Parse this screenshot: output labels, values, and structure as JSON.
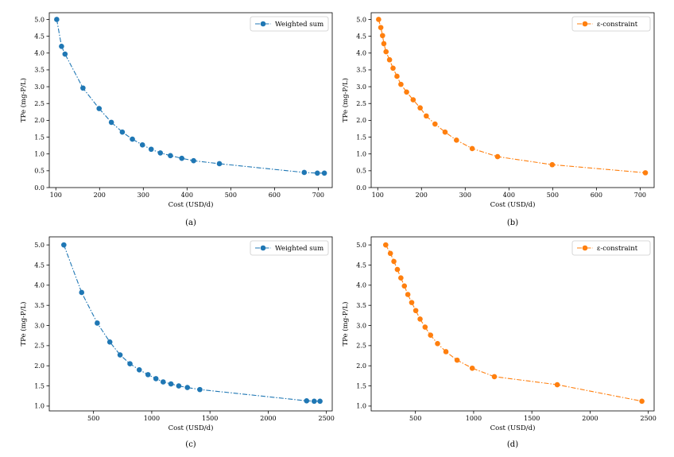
{
  "chart_data": [
    {
      "type": "line",
      "caption": "(a)",
      "xlabel": "Cost (USD/d)",
      "ylabel": "TPe (mg-P/L)",
      "xlim": [
        85,
        732
      ],
      "ylim": [
        0.0,
        5.2
      ],
      "xticks": [
        100,
        200,
        300,
        400,
        500,
        600,
        700
      ],
      "yticks": [
        0.0,
        0.5,
        1.0,
        1.5,
        2.0,
        2.5,
        3.0,
        3.5,
        4.0,
        4.5,
        5.0
      ],
      "ytick_labels": [
        "0.0",
        "0.5",
        "1.0",
        "1.5",
        "2.0",
        "2.5",
        "3.0",
        "3.5",
        "4.0",
        "4.5",
        "5.0"
      ],
      "legend_position": "top-right",
      "series": [
        {
          "name": "Weighted sum",
          "color": "#1f77b4",
          "x": [
            102,
            113,
            121,
            162,
            199,
            227,
            252,
            275,
            298,
            318,
            339,
            362,
            388,
            415,
            474,
            668,
            698,
            714
          ],
          "y": [
            5.0,
            4.2,
            3.97,
            2.96,
            2.35,
            1.94,
            1.65,
            1.44,
            1.27,
            1.14,
            1.03,
            0.95,
            0.87,
            0.8,
            0.71,
            0.45,
            0.43,
            0.43
          ]
        }
      ]
    },
    {
      "type": "line",
      "caption": "(b)",
      "xlabel": "Cost (USD/d)",
      "ylabel": "TPe (mg-P/L)",
      "xlim": [
        85,
        732
      ],
      "ylim": [
        0.0,
        5.2
      ],
      "xticks": [
        100,
        200,
        300,
        400,
        500,
        600,
        700
      ],
      "yticks": [
        0.0,
        0.5,
        1.0,
        1.5,
        2.0,
        2.5,
        3.0,
        3.5,
        4.0,
        4.5,
        5.0
      ],
      "ytick_labels": [
        "0.0",
        "0.5",
        "1.0",
        "1.5",
        "2.0",
        "2.5",
        "3.0",
        "3.5",
        "4.0",
        "4.5",
        "5.0"
      ],
      "legend_position": "top-right",
      "series": [
        {
          "name": "ε-constraint",
          "color": "#ff7f0e",
          "x": [
            102,
            107,
            111,
            114,
            119,
            127,
            135,
            144,
            153,
            166,
            181,
            197,
            211,
            231,
            254,
            280,
            316,
            374,
            499,
            712
          ],
          "y": [
            5.0,
            4.76,
            4.52,
            4.28,
            4.04,
            3.8,
            3.55,
            3.31,
            3.07,
            2.84,
            2.61,
            2.37,
            2.13,
            1.89,
            1.65,
            1.41,
            1.16,
            0.92,
            0.68,
            0.44
          ]
        }
      ]
    },
    {
      "type": "line",
      "caption": "(c)",
      "xlabel": "Cost (USD/d)",
      "ylabel": "TPe (mg-P/L)",
      "xlim": [
        120,
        2550
      ],
      "ylim": [
        0.88,
        5.2
      ],
      "xticks": [
        500,
        1000,
        1500,
        2000,
        2500
      ],
      "yticks": [
        1.0,
        1.5,
        2.0,
        2.5,
        3.0,
        3.5,
        4.0,
        4.5,
        5.0
      ],
      "ytick_labels": [
        "1.0",
        "1.5",
        "2.0",
        "2.5",
        "3.0",
        "3.5",
        "4.0",
        "4.5",
        "5.0"
      ],
      "legend_position": "top-right",
      "series": [
        {
          "name": "Weighted sum",
          "color": "#1f77b4",
          "x": [
            245,
            398,
            532,
            640,
            728,
            813,
            893,
            968,
            1036,
            1098,
            1165,
            1232,
            1306,
            1413,
            2330,
            2395,
            2445
          ],
          "y": [
            5.0,
            3.82,
            3.06,
            2.59,
            2.27,
            2.05,
            1.9,
            1.78,
            1.68,
            1.6,
            1.55,
            1.5,
            1.46,
            1.41,
            1.13,
            1.12,
            1.12
          ]
        }
      ]
    },
    {
      "type": "line",
      "caption": "(d)",
      "xlabel": "Cost (USD/d)",
      "ylabel": "TPe (mg-P/L)",
      "xlim": [
        120,
        2550
      ],
      "ylim": [
        0.88,
        5.2
      ],
      "xticks": [
        500,
        1000,
        1500,
        2000,
        2500
      ],
      "yticks": [
        1.0,
        1.5,
        2.0,
        2.5,
        3.0,
        3.5,
        4.0,
        4.5,
        5.0
      ],
      "ytick_labels": [
        "1.0",
        "1.5",
        "2.0",
        "2.5",
        "3.0",
        "3.5",
        "4.0",
        "4.5",
        "5.0"
      ],
      "legend_position": "top-right",
      "series": [
        {
          "name": "ε-constraint",
          "color": "#ff7f0e",
          "x": [
            245,
            285,
            315,
            345,
            375,
            405,
            435,
            468,
            503,
            540,
            583,
            630,
            690,
            762,
            858,
            988,
            1178,
            1718,
            2445
          ],
          "y": [
            5.0,
            4.79,
            4.59,
            4.39,
            4.18,
            3.98,
            3.77,
            3.57,
            3.37,
            3.16,
            2.96,
            2.76,
            2.55,
            2.35,
            2.14,
            1.94,
            1.73,
            1.53,
            1.12
          ]
        }
      ]
    }
  ]
}
